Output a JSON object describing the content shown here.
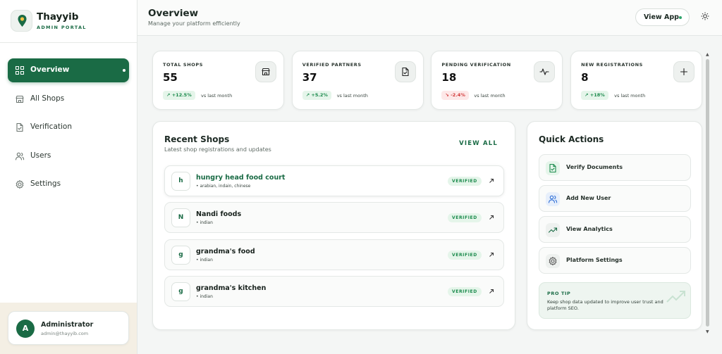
{
  "brand": {
    "name": "Thayyib",
    "subtitle": "ADMIN PORTAL"
  },
  "nav": [
    "Overview",
    "All Shops",
    "Verification",
    "Users",
    "Settings"
  ],
  "user": {
    "initial": "A",
    "name": "Administrator",
    "email": "admin@thayyib.com"
  },
  "header": {
    "title": "Overview",
    "subtitle": "Manage your platform efficiently",
    "button": "View App"
  },
  "stats": [
    {
      "label": "TOTAL SHOPS",
      "value": 55,
      "change": "+12.5%",
      "note": "vs last month"
    },
    {
      "label": "VERIFIED PARTNERS",
      "value": 37,
      "change": "+5.2%",
      "note": "vs last month"
    },
    {
      "label": "PENDING VERIFICATION",
      "value": 18,
      "change": "-2.4%",
      "note": "vs last month"
    },
    {
      "label": "NEW REGISTRATIONS",
      "value": 8,
      "change": "+18%",
      "note": "vs last month"
    }
  ],
  "recent": {
    "title": "Recent Shops",
    "subtitle": "Latest shop registrations and updates",
    "link": "VIEW ALL",
    "shops": [
      {
        "initial": "h",
        "name": "hungry head food court",
        "tags": "• arabian, indain, chinese",
        "status": "VERIFIED"
      },
      {
        "initial": "N",
        "name": "Nandi foods",
        "tags": "• indian",
        "status": "VERIFIED"
      },
      {
        "initial": "g",
        "name": "grandma's food",
        "tags": "• indian",
        "status": "VERIFIED"
      },
      {
        "initial": "g",
        "name": "grandma's kitchen",
        "tags": "• indian",
        "status": "VERIFIED"
      }
    ]
  },
  "quick": {
    "title": "Quick Actions",
    "actions": [
      "Verify Documents",
      "Add New User",
      "View Analytics",
      "Platform Settings"
    ],
    "tip": {
      "title": "PRO TIP",
      "text": "Keep shop data updated to improve user trust and platform SEO."
    }
  }
}
